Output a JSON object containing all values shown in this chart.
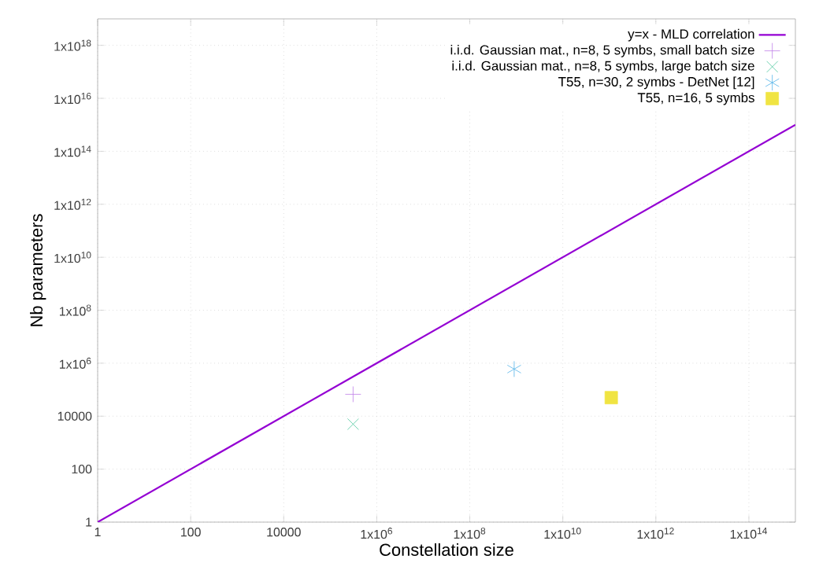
{
  "chart_data": {
    "type": "scatter",
    "xlabel": "Constellation size",
    "ylabel": "Nb parameters",
    "log": "xy",
    "grid": true,
    "legend": "top right",
    "xlim": [
      1,
      1000000000000000.0
    ],
    "ylim": [
      1,
      1e+19
    ],
    "xticks": [
      1,
      100,
      10000,
      {
        "value": 1000000.0,
        "label": "1x10$^{6}$"
      },
      {
        "value": 100000000.0,
        "label": "1x10$^{8}$"
      },
      {
        "value": 10000000000.0,
        "label": "1x10$^{10}$"
      },
      {
        "value": 1000000000000.0,
        "label": "1x10$^{12}$"
      },
      {
        "value": 100000000000000.0,
        "label": "1x10$^{14}$"
      }
    ],
    "yticks": [
      1,
      100,
      10000,
      {
        "value": 1000000.0,
        "label": "1x10$^{6}$"
      },
      {
        "value": 100000000.0,
        "label": "1x10$^{8}$"
      },
      {
        "value": 10000000000.0,
        "label": "1x10$^{10}$"
      },
      {
        "value": 1000000000000.0,
        "label": "1x10$^{12}$"
      },
      {
        "value": 100000000000000.0,
        "label": "1x10$^{14}$"
      },
      {
        "value": 1e+16,
        "label": "1x10$^{16}$"
      },
      {
        "value": 1e+18,
        "label": "1x10$^{18}$"
      }
    ],
    "series": [
      {
        "name": "y=x - MLD correlation",
        "type": "line",
        "marker": "none",
        "color": "#9400d3",
        "x": [
          1,
          1000000000000000.0
        ],
        "values": [
          1,
          1000000000000000.0
        ]
      },
      {
        "name": "i.i.d. Gaussian mat., n=8, 5 symbs, small batch size",
        "marker": "cross",
        "color": "#c080e8",
        "x": [
          310000.0
        ],
        "values": [
          67000
        ]
      },
      {
        "name": "i.i.d. Gaussian mat., n=8, 5 symbs, large batch size",
        "marker": "cross",
        "color": "#50c8a0",
        "x": [
          310000.0
        ],
        "values": [
          5000
        ]
      },
      {
        "name": "T55, n=30, 2 symbs - DetNet [12]",
        "marker": "cross",
        "color": "#56b4e9",
        "x": [
          900000000.0
        ],
        "values": [
          600000
        ]
      },
      {
        "name": "T55, n=16, 5 symbs",
        "marker": "square",
        "color": "#f0e442",
        "x": [
          110000000000.0
        ],
        "values": [
          50000
        ]
      }
    ]
  }
}
